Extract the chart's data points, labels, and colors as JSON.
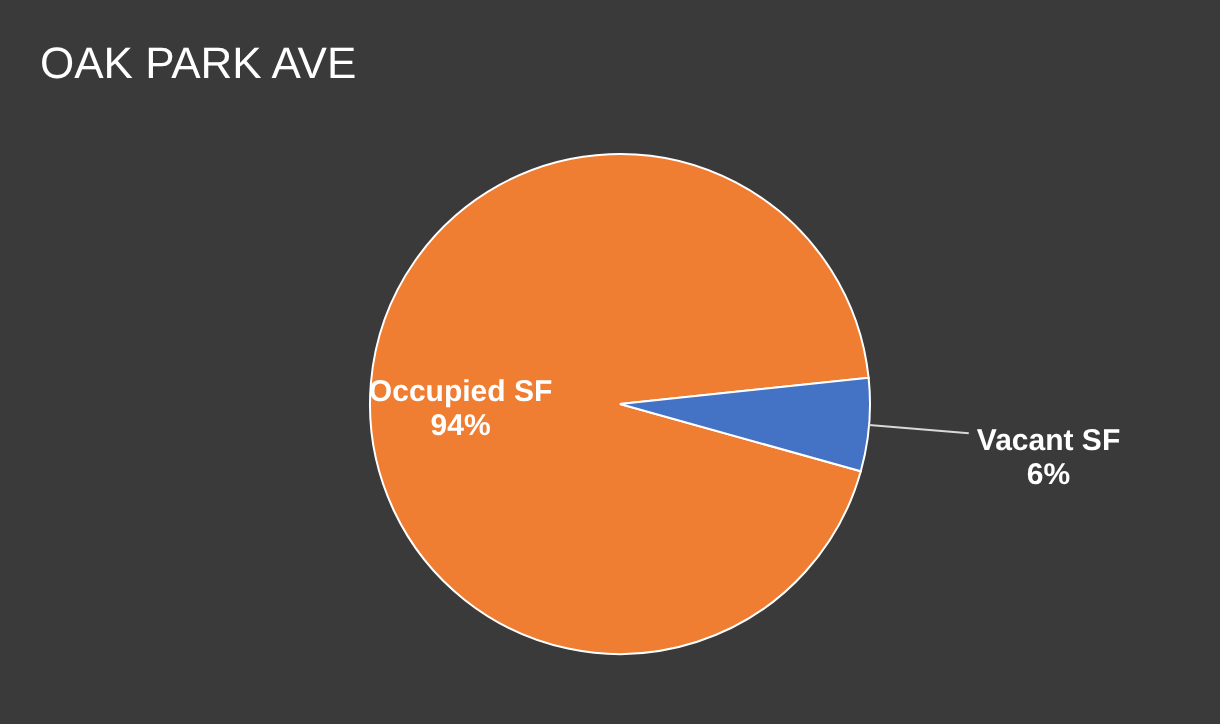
{
  "chart_data": {
    "type": "pie",
    "title": "OAK PARK AVE",
    "categories": [
      "Occupied SF",
      "Vacant SF"
    ],
    "values": [
      94,
      6
    ],
    "colors": [
      "#ef7d32",
      "#4472c4"
    ],
    "value_labels": [
      "94%",
      "6%"
    ],
    "legend": false
  }
}
